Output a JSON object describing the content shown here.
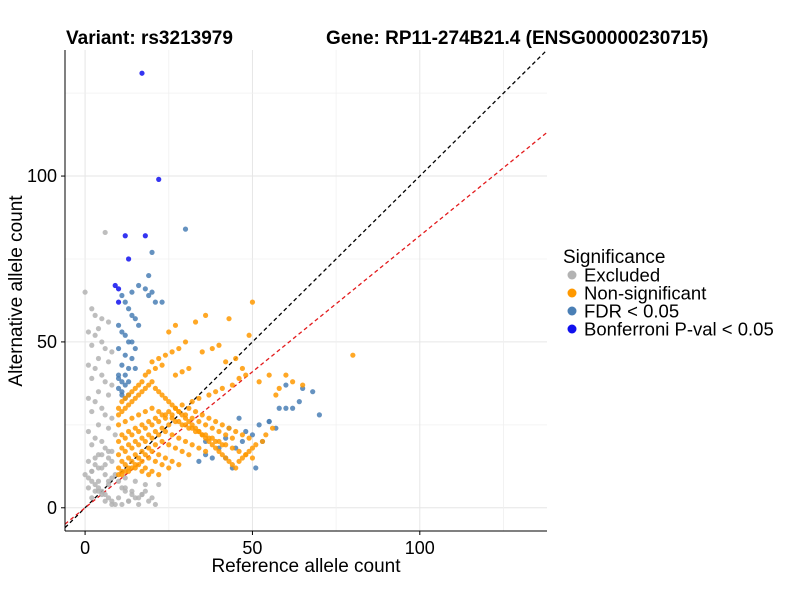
{
  "chart_data": {
    "type": "scatter",
    "title_left": "Variant: rs3213979",
    "title_right": "Gene: RP11-274B21.4 (ENSG00000230715)",
    "xlabel": "Reference allele count",
    "ylabel": "Alternative allele count",
    "xlim": [
      -6,
      138
    ],
    "ylim": [
      -7,
      138
    ],
    "xticks": [
      0,
      50,
      100
    ],
    "yticks": [
      0,
      50,
      100
    ],
    "grid": true,
    "reference_lines": [
      {
        "name": "identity",
        "slope": 1.0,
        "intercept": 0,
        "color": "#000000",
        "style": "dashed"
      },
      {
        "name": "expected-ratio",
        "slope": 0.82,
        "intercept": 0,
        "color": "#e31a1c",
        "style": "dashed"
      }
    ],
    "legend": {
      "title": "Significance",
      "position": "right",
      "entries": [
        {
          "label": "Excluded",
          "color": "#b3b3b3"
        },
        {
          "label": "Non-significant",
          "color": "#ff9900"
        },
        {
          "label": "FDR < 0.05",
          "color": "#4a7fb5"
        },
        {
          "label": "Bonferroni P-val < 0.05",
          "color": "#1010ee"
        }
      ]
    },
    "series": [
      {
        "name": "Bonferroni P-val < 0.05",
        "color": "#1010ee",
        "x": [
          17,
          22,
          12,
          18,
          13,
          9,
          10,
          10
        ],
        "y": [
          131,
          99,
          82,
          82,
          75,
          67,
          66,
          62
        ]
      },
      {
        "name": "FDR < 0.05",
        "color": "#4a7fb5",
        "x": [
          30,
          20,
          19,
          16,
          18,
          14,
          20,
          19,
          21,
          23,
          11,
          12,
          13,
          14,
          15,
          16,
          10,
          11,
          12,
          13,
          14,
          15,
          10,
          12,
          14,
          11,
          13,
          15,
          10,
          12,
          11,
          13,
          12,
          10,
          11,
          13,
          12,
          11,
          10,
          60,
          65,
          64,
          68,
          58,
          62,
          70,
          55,
          57,
          50,
          47,
          45,
          42,
          40,
          38,
          36,
          34,
          55,
          52,
          46,
          43,
          48,
          36,
          60,
          44,
          42,
          51,
          53
        ],
        "y": [
          84,
          77,
          70,
          67,
          66,
          65,
          65,
          64,
          62,
          62,
          64,
          62,
          60,
          58,
          57,
          55,
          55,
          53,
          52,
          50,
          50,
          48,
          48,
          46,
          45,
          43,
          42,
          42,
          40,
          40,
          38,
          38,
          37,
          36,
          35,
          34,
          33,
          34,
          39,
          37,
          36,
          32,
          35,
          30,
          30,
          28,
          26,
          24,
          22,
          20,
          18,
          21,
          18,
          15,
          16,
          14,
          26,
          25,
          27,
          24,
          23,
          20,
          30,
          12,
          15,
          12,
          20
        ]
      },
      {
        "name": "Excluded",
        "color": "#b3b3b3",
        "x": [
          0,
          6,
          2,
          3,
          5,
          7,
          4,
          1,
          3,
          5,
          2,
          6,
          8,
          4,
          7,
          1,
          3,
          5,
          2,
          6,
          8,
          4,
          7,
          1,
          3,
          5,
          2,
          6,
          8,
          4,
          7,
          1,
          9,
          3,
          5,
          2,
          6,
          8,
          4,
          7,
          1,
          3,
          5,
          2,
          6,
          8,
          4,
          7,
          1,
          3,
          5,
          2,
          6,
          8,
          4,
          7,
          9,
          12,
          15,
          18,
          11,
          14,
          17,
          20,
          13,
          16,
          10,
          12,
          14,
          16,
          18,
          22,
          11,
          13,
          15,
          17,
          19,
          21,
          10,
          12,
          9,
          8,
          7,
          6,
          5,
          4,
          3,
          2,
          1,
          0,
          2,
          4,
          6,
          8,
          3,
          5,
          7
        ],
        "y": [
          65,
          83,
          60,
          58,
          57,
          56,
          54,
          53,
          52,
          50,
          49,
          48,
          47,
          45,
          44,
          43,
          42,
          40,
          39,
          38,
          37,
          35,
          34,
          33,
          32,
          30,
          29,
          28,
          27,
          25,
          24,
          23,
          22,
          21,
          20,
          19,
          18,
          17,
          16,
          15,
          14,
          13,
          12,
          11,
          10,
          9,
          8,
          7,
          6,
          5,
          4,
          3,
          2,
          1,
          5,
          8,
          10,
          9,
          8,
          7,
          6,
          5,
          4,
          3,
          2,
          1,
          8,
          6,
          4,
          3,
          5,
          7,
          1,
          2,
          3,
          4,
          2,
          1,
          3,
          5,
          1,
          2,
          3,
          4,
          5,
          6,
          7,
          8,
          9,
          10,
          11,
          12,
          13,
          14,
          15,
          16,
          17
        ]
      },
      {
        "name": "Non-significant",
        "color": "#ff9900",
        "x": [
          80,
          50,
          43,
          36,
          33,
          49,
          27,
          25,
          30,
          28,
          26,
          24,
          22,
          20,
          40,
          38,
          35,
          45,
          42,
          47,
          55,
          52,
          58,
          60,
          62,
          65,
          57,
          48,
          46,
          44,
          41,
          39,
          37,
          34,
          32,
          31,
          29,
          27,
          23,
          21,
          19,
          18,
          17,
          16,
          15,
          14,
          13,
          12,
          11,
          10,
          10,
          11,
          12,
          13,
          14,
          15,
          16,
          17,
          18,
          19,
          20,
          21,
          22,
          23,
          24,
          25,
          26,
          27,
          28,
          29,
          30,
          31,
          32,
          33,
          34,
          35,
          36,
          37,
          38,
          39,
          40,
          41,
          42,
          43,
          44,
          45,
          46,
          47,
          48,
          49,
          50,
          51,
          53,
          54,
          56,
          10,
          12,
          14,
          16,
          18,
          20,
          22,
          24,
          26,
          28,
          30,
          32,
          34,
          36,
          38,
          40,
          42,
          44,
          46,
          48,
          50,
          11,
          13,
          15,
          17,
          19,
          21,
          23,
          25,
          27,
          29,
          31,
          33,
          35,
          37,
          39,
          41,
          43,
          45,
          47,
          49,
          10,
          12,
          14,
          16,
          18,
          20,
          22,
          24,
          26,
          28,
          30,
          32,
          34,
          36,
          38,
          40,
          42,
          44,
          11,
          13,
          15,
          17,
          19,
          21,
          23,
          25,
          27,
          29,
          31,
          33,
          35,
          37,
          39,
          41,
          10,
          12,
          14,
          16,
          18,
          20,
          22,
          24,
          26,
          28,
          30,
          32,
          34,
          36,
          11,
          13,
          15,
          17,
          19,
          21,
          23,
          25,
          27,
          29,
          31,
          10,
          12,
          14,
          16,
          18,
          20,
          22,
          24,
          26,
          28,
          11,
          13,
          15,
          17,
          19,
          21,
          23,
          25,
          10,
          12,
          14,
          16,
          18,
          20,
          22,
          11,
          13,
          15,
          17,
          19
        ],
        "y": [
          46,
          62,
          57,
          58,
          56,
          52,
          55,
          53,
          50,
          48,
          47,
          46,
          45,
          44,
          49,
          48,
          47,
          45,
          44,
          42,
          40,
          38,
          36,
          40,
          38,
          37,
          34,
          40,
          39,
          37,
          36,
          35,
          34,
          33,
          32,
          42,
          41,
          40,
          43,
          42,
          41,
          40,
          38,
          37,
          36,
          35,
          34,
          33,
          32,
          30,
          28,
          29,
          30,
          31,
          32,
          33,
          34,
          35,
          36,
          37,
          38,
          36,
          35,
          34,
          33,
          32,
          31,
          30,
          29,
          28,
          27,
          26,
          25,
          24,
          23,
          22,
          21,
          20,
          19,
          18,
          17,
          16,
          15,
          14,
          13,
          12,
          14,
          15,
          16,
          17,
          18,
          19,
          20,
          22,
          24,
          25,
          26,
          27,
          28,
          29,
          30,
          29,
          28,
          27,
          26,
          25,
          24,
          23,
          22,
          21,
          20,
          19,
          18,
          17,
          16,
          15,
          22,
          23,
          24,
          25,
          26,
          27,
          28,
          29,
          30,
          31,
          30,
          29,
          28,
          27,
          26,
          25,
          24,
          23,
          22,
          21,
          20,
          21,
          22,
          23,
          24,
          25,
          26,
          27,
          28,
          29,
          28,
          27,
          26,
          25,
          24,
          23,
          22,
          21,
          18,
          19,
          20,
          21,
          22,
          23,
          24,
          25,
          26,
          25,
          24,
          23,
          22,
          21,
          20,
          19,
          16,
          17,
          18,
          19,
          20,
          21,
          22,
          23,
          22,
          21,
          20,
          19,
          18,
          17,
          14,
          15,
          16,
          17,
          18,
          19,
          20,
          19,
          18,
          17,
          16,
          12,
          13,
          14,
          15,
          16,
          17,
          16,
          15,
          14,
          13,
          11,
          12,
          13,
          14,
          15,
          14,
          13,
          12,
          10,
          11,
          12,
          13,
          12,
          11,
          10,
          10,
          11,
          12,
          11,
          10
        ]
      }
    ]
  }
}
